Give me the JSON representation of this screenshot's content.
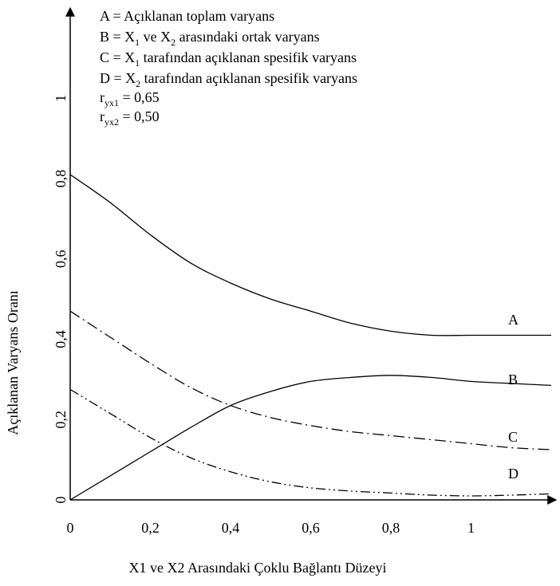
{
  "chart_data": {
    "type": "line",
    "title": "",
    "xlabel": "X1 ve X2 Arasındaki Çoklu Bağlantı Düzeyi",
    "ylabel": "Açıklanan Varyans Oranı",
    "xlim": [
      0,
      1.2
    ],
    "ylim": [
      0,
      1.2
    ],
    "x_ticks": [
      "0",
      "0,2",
      "0,4",
      "0,6",
      "0,8",
      "1"
    ],
    "y_ticks": [
      "0",
      "0,2",
      "0,4",
      "0,6",
      "0,8",
      "1"
    ],
    "grid": false,
    "legend": {
      "placement": "top-left",
      "lines": [
        [
          {
            "t": "A = Açıklanan toplam varyans"
          }
        ],
        [
          {
            "t": "B = X"
          },
          {
            "t": "1",
            "sub": true
          },
          {
            "t": "  ve X"
          },
          {
            "t": "2",
            "sub": true
          },
          {
            "t": "  arasındaki ortak varyans"
          }
        ],
        [
          {
            "t": "C = X"
          },
          {
            "t": "1",
            "sub": true
          },
          {
            "t": " tarafından açıklanan spesifik varyans"
          }
        ],
        [
          {
            "t": "D = X"
          },
          {
            "t": "2",
            "sub": true
          },
          {
            "t": " tarafından açıklanan spesifik varyans"
          }
        ],
        [
          {
            "t": "r"
          },
          {
            "t": "yx1",
            "sub": true
          },
          {
            "t": " = 0,65"
          }
        ],
        [
          {
            "t": "r"
          },
          {
            "t": "yx2",
            "sub": true
          },
          {
            "t": " = 0,50"
          }
        ]
      ]
    },
    "series": [
      {
        "name": "A",
        "style": "solid",
        "x": [
          0,
          0.1,
          0.2,
          0.3,
          0.4,
          0.5,
          0.6,
          0.7,
          0.8,
          0.9,
          1.0,
          1.1,
          1.2
        ],
        "y": [
          0.81,
          0.74,
          0.66,
          0.59,
          0.54,
          0.5,
          0.47,
          0.44,
          0.42,
          0.41,
          0.41,
          0.41,
          0.41
        ]
      },
      {
        "name": "B",
        "style": "solid",
        "x": [
          0,
          0.1,
          0.2,
          0.3,
          0.4,
          0.5,
          0.6,
          0.7,
          0.8,
          0.9,
          1.0,
          1.1,
          1.2
        ],
        "y": [
          0.0,
          0.06,
          0.12,
          0.18,
          0.235,
          0.27,
          0.295,
          0.305,
          0.31,
          0.305,
          0.295,
          0.29,
          0.285
        ]
      },
      {
        "name": "C",
        "style": "dash-dot",
        "x": [
          0,
          0.1,
          0.2,
          0.3,
          0.4,
          0.5,
          0.6,
          0.7,
          0.8,
          0.9,
          1.0,
          1.1,
          1.2
        ],
        "y": [
          0.47,
          0.405,
          0.34,
          0.28,
          0.235,
          0.205,
          0.185,
          0.17,
          0.16,
          0.15,
          0.14,
          0.13,
          0.125
        ]
      },
      {
        "name": "D",
        "style": "dash-dot-dot",
        "x": [
          0,
          0.1,
          0.2,
          0.3,
          0.4,
          0.5,
          0.6,
          0.7,
          0.8,
          0.9,
          1.0,
          1.1,
          1.2
        ],
        "y": [
          0.275,
          0.215,
          0.155,
          0.105,
          0.07,
          0.045,
          0.03,
          0.022,
          0.017,
          0.012,
          0.01,
          0.012,
          0.015
        ]
      }
    ]
  }
}
